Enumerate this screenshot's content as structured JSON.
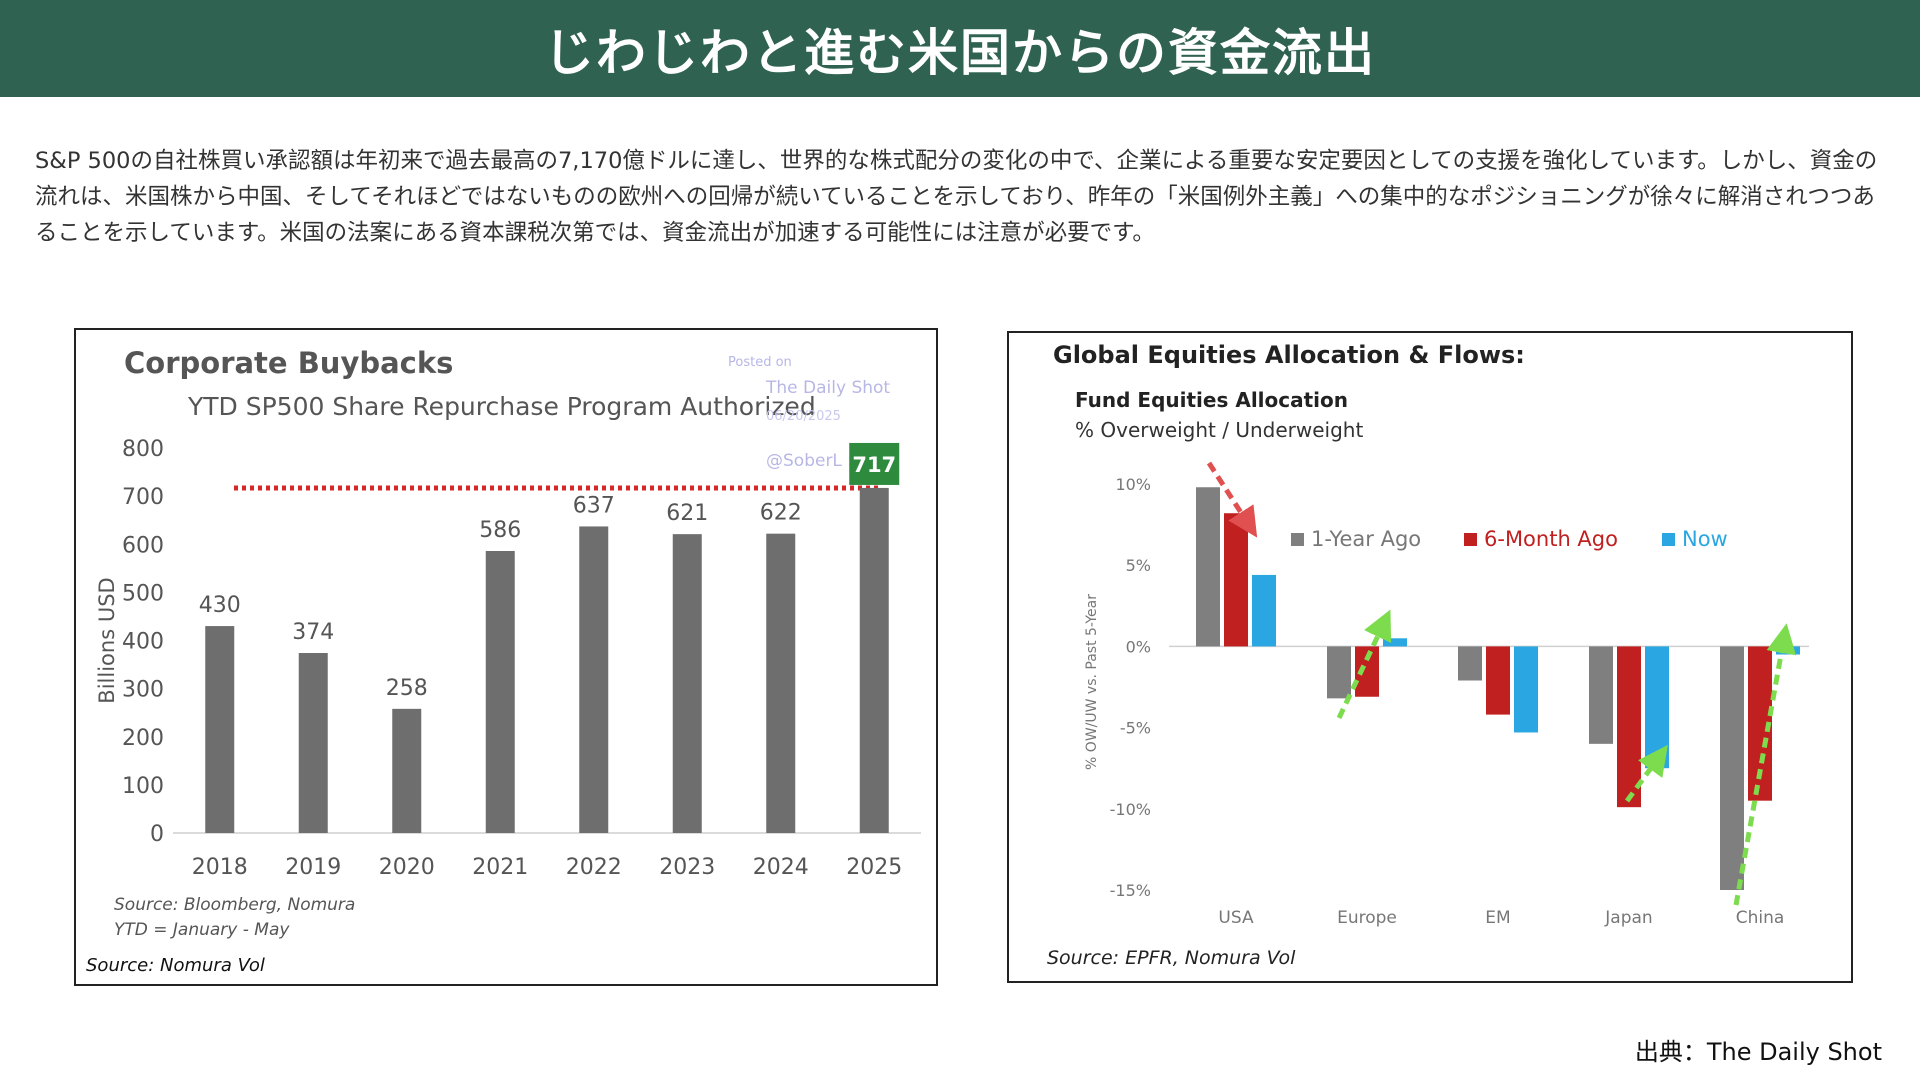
{
  "header": {
    "title": "じわじわと進む米国からの資金流出"
  },
  "intro_text": "S&P 500の自社株買い承認額は年初来で過去最高の7,170億ドルに達し、世界的な株式配分の変化の中で、企業による重要な安定要因としての支援を強化しています。しかし、資金の流れは、米国株から中国、そしてそれほどではないものの欧州への回帰が続いていることを示しており、昨年の「米国例外主義」への集中的なポジショニングが徐々に解消されつつあることを示しています。米国の法案にある資本課税次第では、資金流出が加速する可能性には注意が必要です。",
  "credit": "出典：The Daily Shot",
  "chart_data": [
    {
      "type": "bar",
      "title": "Corporate Buybacks",
      "subtitle": "YTD SP500 Share Repurchase Program Authorized",
      "ylabel": "Billions USD",
      "ylim": [
        0,
        800
      ],
      "yticks": [
        0,
        100,
        200,
        300,
        400,
        500,
        600,
        700,
        800
      ],
      "categories": [
        "2018",
        "2019",
        "2020",
        "2021",
        "2022",
        "2023",
        "2024",
        "2025"
      ],
      "values": [
        430,
        374,
        258,
        586,
        637,
        621,
        622,
        717
      ],
      "data_labels": [
        "430",
        "374",
        "258",
        "586",
        "637",
        "621",
        "622",
        "717"
      ],
      "highlight_label": "717",
      "reference_line_value": 717,
      "watermark": {
        "posted": "Posted on",
        "site": "The Daily Shot",
        "date": "06/20/2025",
        "handle": "@SoberL"
      },
      "notes": [
        "Source: Bloomberg, Nomura",
        "YTD = January - May"
      ],
      "source": "Source: Nomura Vol",
      "colors": {
        "bar": "#6e6e6e",
        "highlight": "#2e8b3e",
        "reference_line": "#d62728"
      },
      "grid": false
    },
    {
      "type": "bar",
      "title": "Global Equities Allocation & Flows:",
      "subtitle": "Fund Equities Allocation",
      "subtitle2": "% Overweight / Underweight",
      "ylabel": "% OW/UW vs. Past 5-Year",
      "ylim": [
        -15,
        10
      ],
      "yticks": [
        10,
        5,
        0,
        -5,
        -10,
        -15
      ],
      "ytick_labels": [
        "10%",
        "5%",
        "0%",
        "-5%",
        "-10%",
        "-15%"
      ],
      "categories": [
        "USA",
        "Europe",
        "EM",
        "Japan",
        "China"
      ],
      "series": [
        {
          "name": "1-Year Ago",
          "values": [
            9.8,
            -3.2,
            -2.1,
            -6.0,
            -15.0
          ],
          "color": "#7f7f7f"
        },
        {
          "name": "6-Month Ago",
          "values": [
            8.2,
            -3.1,
            -4.2,
            -9.9,
            -9.5
          ],
          "color": "#c0201f"
        },
        {
          "name": "Now",
          "values": [
            4.4,
            0.5,
            -5.3,
            -7.5,
            -0.5
          ],
          "color": "#2aa7e2"
        }
      ],
      "legend_position": "top-right",
      "source": "Source: EPFR, Nomura Vol",
      "colors": {
        "down_arrow": "#e05050",
        "up_arrow": "#7ddc4e"
      },
      "grid": false
    }
  ]
}
